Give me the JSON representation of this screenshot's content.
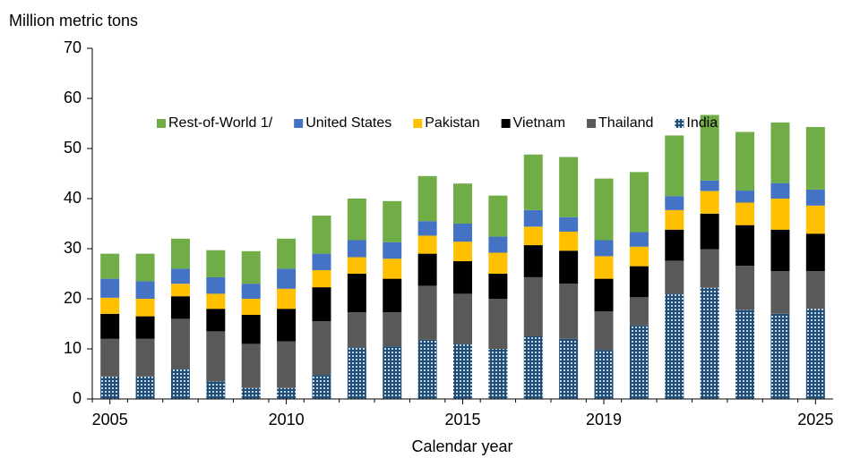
{
  "chart_data": {
    "type": "stacked_bar",
    "y_label": "Million metric tons",
    "x_label": "Calendar year",
    "categories": [
      "2005",
      null,
      null,
      null,
      null,
      "2010",
      null,
      null,
      null,
      null,
      "2015",
      null,
      null,
      null,
      "2019",
      null,
      null,
      null,
      null,
      null,
      "2025"
    ],
    "ylim": [
      0,
      70
    ],
    "yticks": [
      0,
      10,
      20,
      30,
      40,
      50,
      60,
      70
    ],
    "grid": false,
    "legend": "top-left",
    "series": [
      {
        "name": "India",
        "color": "#1f4e79",
        "pattern": "dots",
        "values": [
          4.5,
          4.5,
          6,
          3.5,
          2.2,
          2.2,
          4.8,
          10.3,
          10.5,
          11.8,
          11,
          10,
          12.5,
          12,
          9.8,
          14.7,
          21,
          22.2,
          17.8,
          17,
          18
        ]
      },
      {
        "name": "Thailand",
        "color": "#595959",
        "values": [
          7.5,
          7.5,
          10,
          10,
          8.8,
          9.3,
          10.7,
          7,
          6.8,
          10.8,
          10,
          10,
          11.8,
          11,
          7.7,
          5.6,
          6.6,
          7.7,
          8.8,
          8.5,
          7.5
        ]
      },
      {
        "name": "Vietnam",
        "color": "#000000",
        "values": [
          5,
          4.5,
          4.5,
          4.5,
          5.8,
          6.5,
          6.8,
          7.7,
          6.7,
          6.4,
          6.5,
          5,
          6.4,
          6.6,
          6.5,
          6.2,
          6.2,
          7.1,
          8.1,
          8.3,
          7.5
        ]
      },
      {
        "name": "Pakistan",
        "color": "#ffc000",
        "values": [
          3.2,
          3.5,
          2.5,
          3,
          3.2,
          4,
          3.4,
          3.3,
          4,
          3.6,
          3.9,
          4.2,
          3.7,
          3.8,
          4.5,
          3.9,
          3.9,
          4.5,
          4.5,
          6.2,
          5.6
        ]
      },
      {
        "name": "United States",
        "color": "#4472c4",
        "values": [
          3.8,
          3.5,
          3,
          3.3,
          3,
          4,
          3.3,
          3.4,
          3.3,
          2.9,
          3.6,
          3.2,
          3.3,
          2.9,
          3.2,
          2.9,
          2.8,
          2.1,
          2.4,
          3.1,
          3.2
        ]
      },
      {
        "name": "Rest-of-World 1/",
        "color": "#70ad47",
        "values": [
          5,
          5.5,
          6,
          5.4,
          6.5,
          6,
          7.6,
          8.3,
          8.2,
          9,
          8,
          8.2,
          11.1,
          12,
          12.3,
          12,
          12.1,
          13.1,
          11.7,
          12.1,
          12.5
        ]
      }
    ]
  }
}
